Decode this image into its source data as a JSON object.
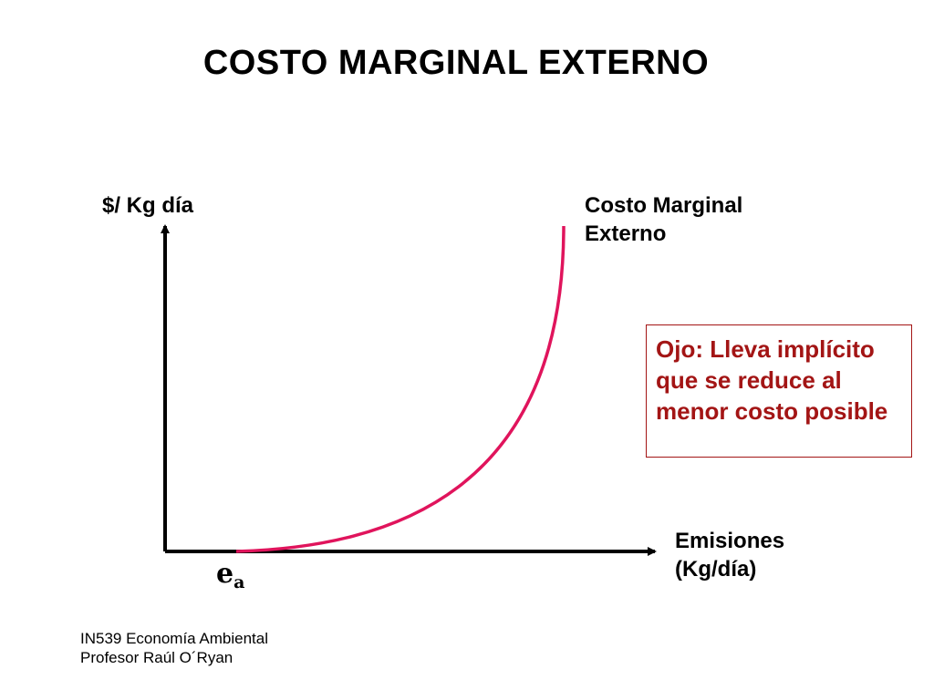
{
  "title": "COSTO MARGINAL EXTERNO",
  "axes": {
    "y_label": "$/ Kg día",
    "x_label_line1": "Emisiones",
    "x_label_line2": "(Kg/día)",
    "origin_label_main": "e",
    "origin_label_sub": "a"
  },
  "curve": {
    "label_line1": "Costo Marginal",
    "label_line2": "Externo",
    "color": "#e0145c"
  },
  "note": {
    "text": "Ojo: Lleva implícito que se reduce al menor costo posible",
    "color": "#a31515"
  },
  "footer": {
    "line1": "IN539 Economía Ambiental",
    "line2": "Profesor Raúl O´Ryan"
  }
}
